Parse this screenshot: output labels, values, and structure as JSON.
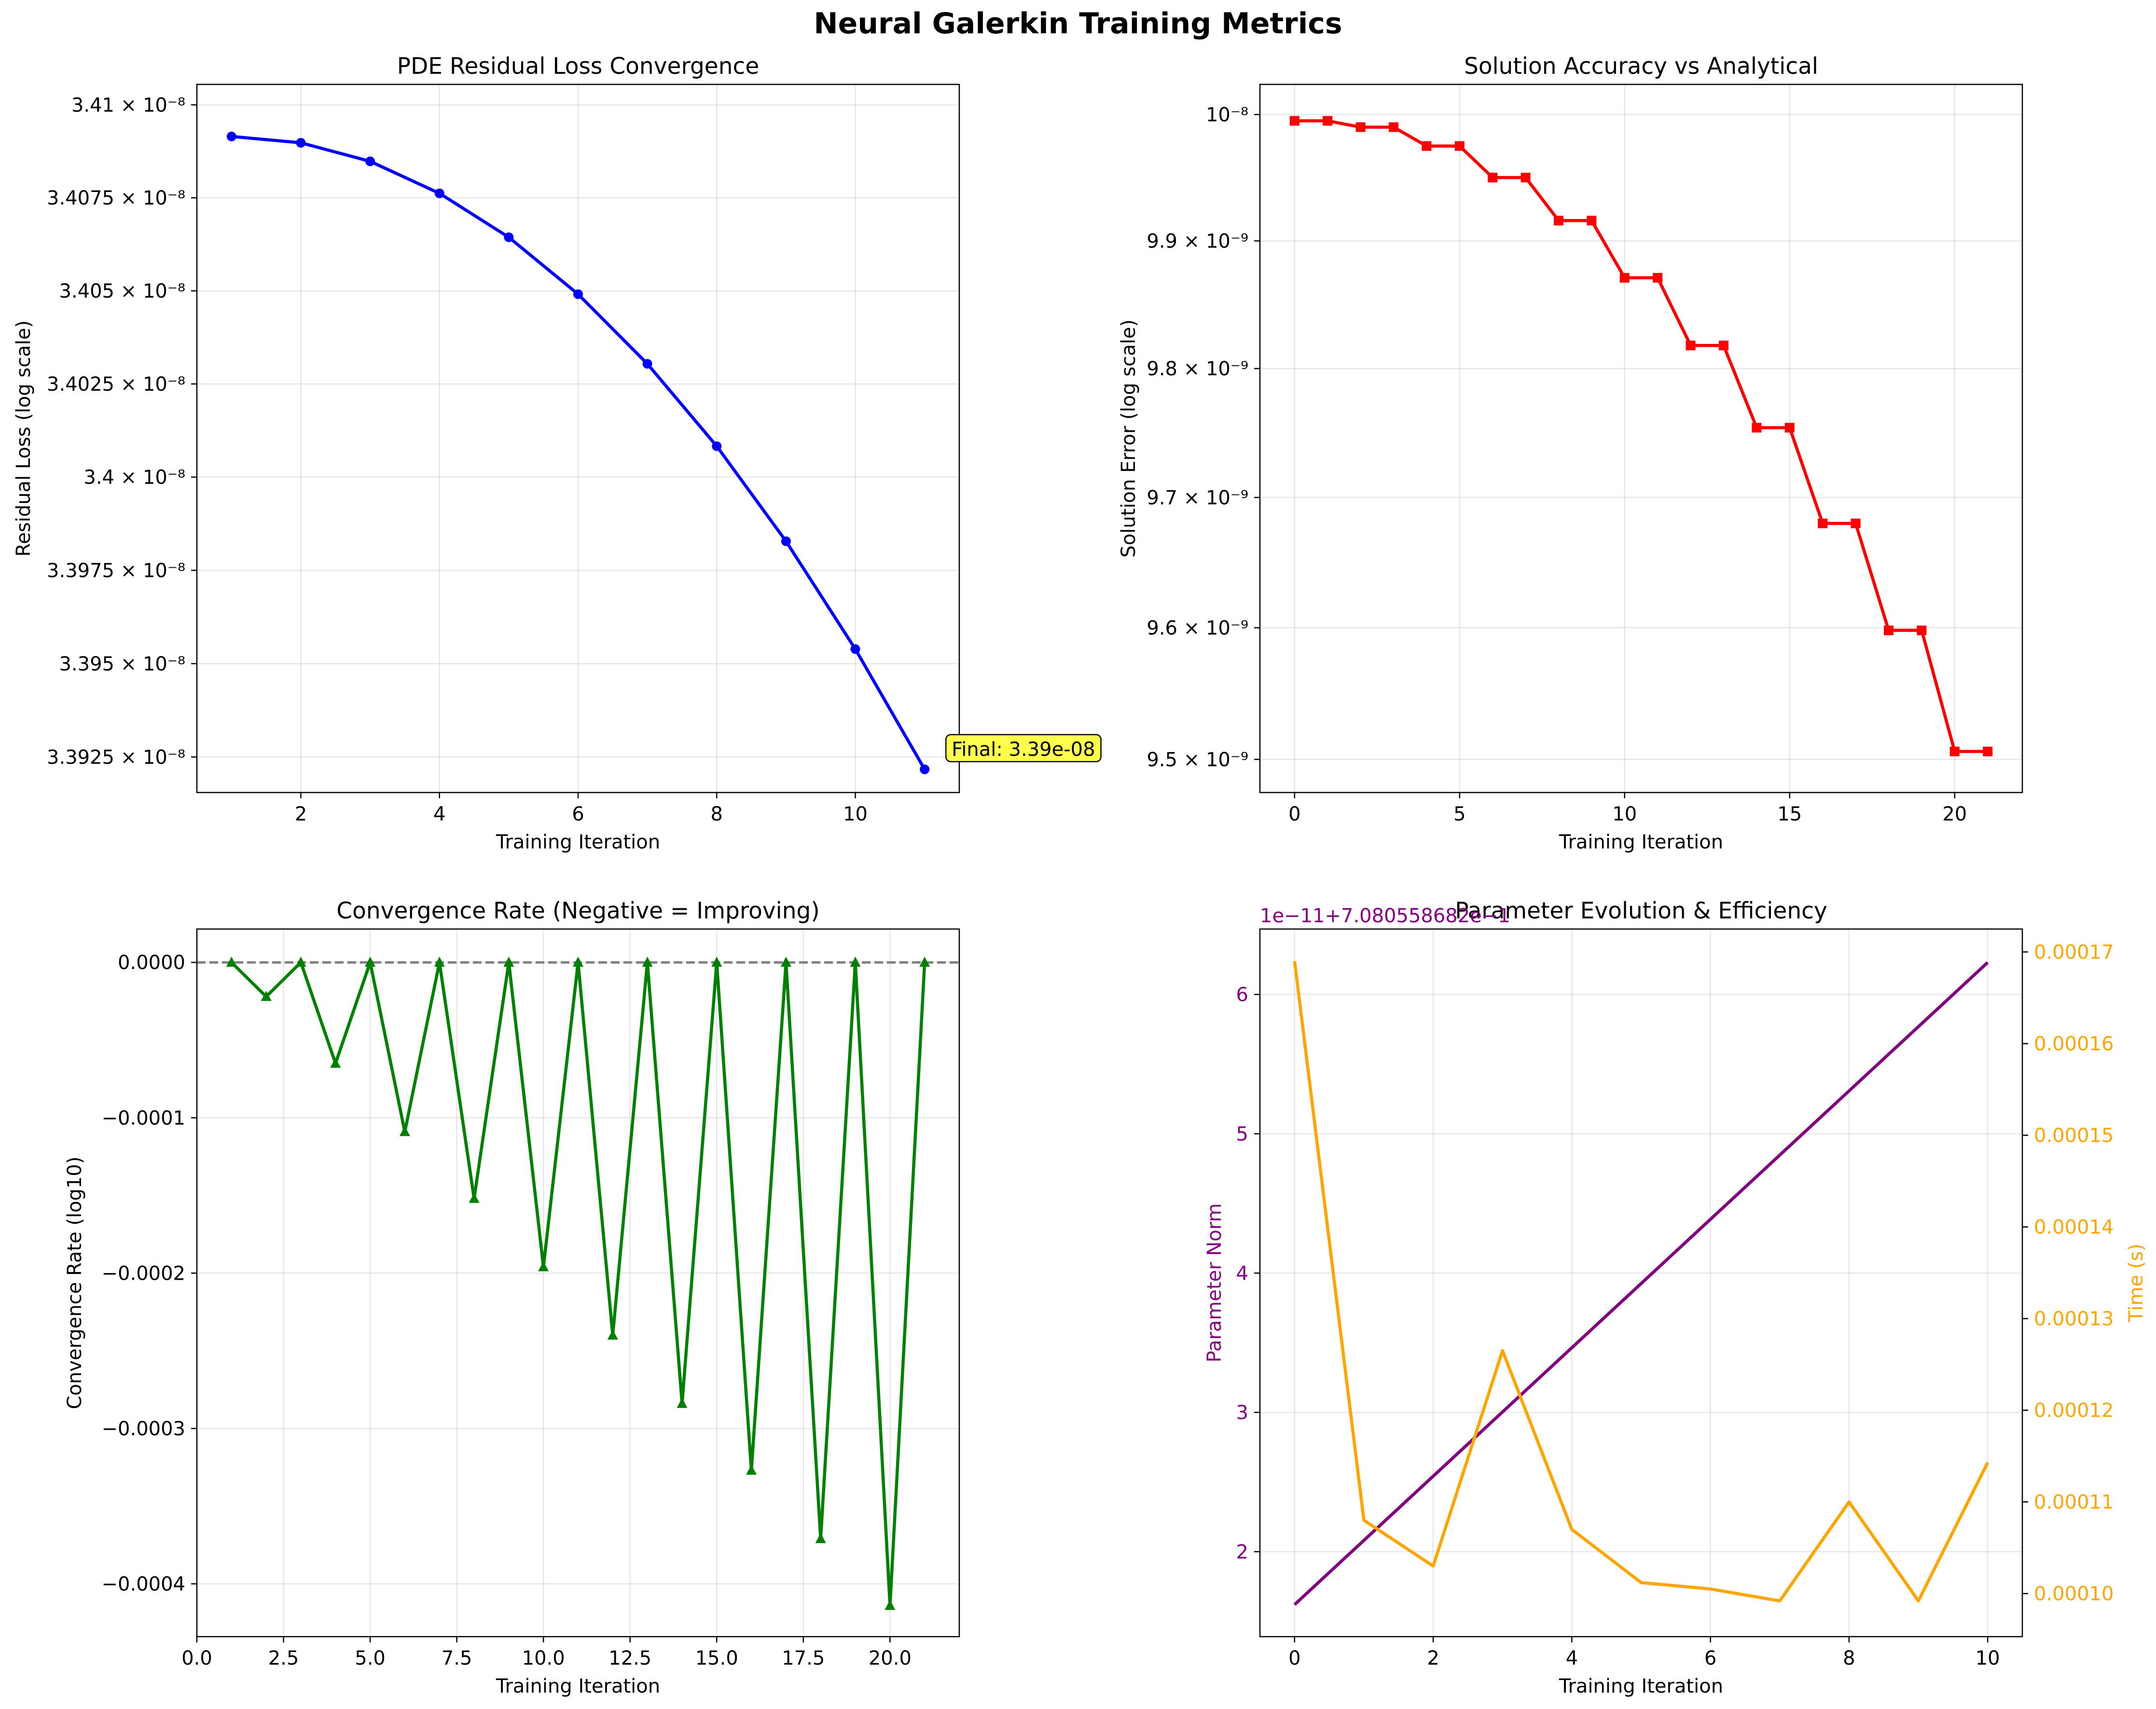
{
  "figure": {
    "suptitle": "Neural Galerkin Training Metrics"
  },
  "colors": {
    "blue": "#0000ff",
    "red": "#ff0000",
    "green": "#008000",
    "purple": "#800080",
    "orange": "#ffa500",
    "annotation_bg": "#ffff4d",
    "zero_line": "#808080"
  },
  "chart_data": [
    {
      "id": "residual",
      "type": "line",
      "title": "PDE Residual Loss Convergence",
      "xlabel": "Training Iteration",
      "ylabel": "Residual Loss (log scale)",
      "yscale": "log",
      "xlim": [
        0.5,
        11.5
      ],
      "ylim": [
        3.39155e-08,
        3.41055e-08
      ],
      "xticks": [
        2,
        4,
        6,
        8,
        10
      ],
      "yticks": [
        {
          "value": 3.3925e-08,
          "label": "3.3925 × 10⁻⁸"
        },
        {
          "value": 3.395e-08,
          "label": "3.395 × 10⁻⁸"
        },
        {
          "value": 3.3975e-08,
          "label": "3.3975 × 10⁻⁸"
        },
        {
          "value": 3.4e-08,
          "label": "3.4 × 10⁻⁸"
        },
        {
          "value": 3.4025e-08,
          "label": "3.4025 × 10⁻⁸"
        },
        {
          "value": 3.405e-08,
          "label": "3.405 × 10⁻⁸"
        },
        {
          "value": 3.4075e-08,
          "label": "3.4075 × 10⁻⁸"
        },
        {
          "value": 3.41e-08,
          "label": "3.41 × 10⁻⁸"
        }
      ],
      "grid": true,
      "series": [
        {
          "color": "#0000ff",
          "marker": "circle",
          "x": [
            1,
            2,
            3,
            4,
            5,
            6,
            7,
            8,
            9,
            10,
            11
          ],
          "y": [
            3.40915e-08,
            3.40898e-08,
            3.40848e-08,
            3.40762e-08,
            3.40644e-08,
            3.40491e-08,
            3.40304e-08,
            3.40083e-08,
            3.39828e-08,
            3.39539e-08,
            3.39217e-08
          ]
        }
      ],
      "annotation": {
        "text": "Final: 3.39e-08",
        "x": 11,
        "y": 3.39217e-08
      }
    },
    {
      "id": "accuracy",
      "type": "line",
      "title": "Solution Accuracy vs Analytical",
      "xlabel": "Training Iteration",
      "ylabel": "Solution Error (log scale)",
      "yscale": "log",
      "xlim": [
        -1.05,
        22.05
      ],
      "ylim": [
        9.475e-09,
        1.0024e-08
      ],
      "xticks": [
        0,
        5,
        10,
        15,
        20
      ],
      "yticks": [
        {
          "value": 9.5e-09,
          "label": "9.5 × 10⁻⁹"
        },
        {
          "value": 9.6e-09,
          "label": "9.6 × 10⁻⁹"
        },
        {
          "value": 9.7e-09,
          "label": "9.7 × 10⁻⁹"
        },
        {
          "value": 9.8e-09,
          "label": "9.8 × 10⁻⁹"
        },
        {
          "value": 9.9e-09,
          "label": "9.9 × 10⁻⁹"
        },
        {
          "value": 1e-08,
          "label": "10⁻⁸"
        }
      ],
      "grid": true,
      "series": [
        {
          "color": "#ff0000",
          "marker": "square",
          "x": [
            0,
            1,
            2,
            3,
            4,
            5,
            6,
            7,
            8,
            9,
            10,
            11,
            12,
            13,
            14,
            15,
            16,
            17,
            18,
            19,
            20,
            21
          ],
          "y": [
            9.995e-09,
            9.995e-09,
            9.99e-09,
            9.99e-09,
            9.975e-09,
            9.975e-09,
            9.95e-09,
            9.95e-09,
            9.916e-09,
            9.916e-09,
            9.871e-09,
            9.871e-09,
            9.818e-09,
            9.818e-09,
            9.754e-09,
            9.754e-09,
            9.68e-09,
            9.68e-09,
            9.598e-09,
            9.598e-09,
            9.506e-09,
            9.506e-09
          ]
        }
      ]
    },
    {
      "id": "rate",
      "type": "line",
      "title": "Convergence Rate (Negative = Improving)",
      "xlabel": "Training Iteration",
      "ylabel": "Convergence Rate (log10)",
      "xlim": [
        0,
        22
      ],
      "ylim": [
        -0.000434,
        2.15e-05
      ],
      "xticks": [
        {
          "value": 0,
          "label": "0.0"
        },
        {
          "value": 2.5,
          "label": "2.5"
        },
        {
          "value": 5,
          "label": "5.0"
        },
        {
          "value": 7.5,
          "label": "7.5"
        },
        {
          "value": 10,
          "label": "10.0"
        },
        {
          "value": 12.5,
          "label": "12.5"
        },
        {
          "value": 15,
          "label": "15.0"
        },
        {
          "value": 17.5,
          "label": "17.5"
        },
        {
          "value": 20,
          "label": "20.0"
        }
      ],
      "yticks": [
        {
          "value": 0,
          "label": "0.0000"
        },
        {
          "value": -0.0001,
          "label": "−0.0001"
        },
        {
          "value": -0.0002,
          "label": "−0.0002"
        },
        {
          "value": -0.0003,
          "label": "−0.0003"
        },
        {
          "value": -0.0004,
          "label": "−0.0004"
        }
      ],
      "grid": true,
      "hline": {
        "y": 0,
        "style": "dashed"
      },
      "series": [
        {
          "color": "#008000",
          "marker": "triangle",
          "x": [
            1,
            2,
            3,
            4,
            5,
            6,
            7,
            8,
            9,
            10,
            11,
            12,
            13,
            14,
            15,
            16,
            17,
            18,
            19,
            20,
            21
          ],
          "y": [
            0,
            -2.2e-05,
            0,
            -6.5e-05,
            0,
            -0.000109,
            0,
            -0.000152,
            0,
            -0.000196,
            0,
            -0.00024,
            0,
            -0.000284,
            0,
            -0.000327,
            0,
            -0.000371,
            0,
            -0.000414,
            0
          ]
        }
      ]
    },
    {
      "id": "params",
      "type": "line",
      "title": "Parameter Evolution & Efficiency",
      "xlabel": "Training Iteration",
      "ylabel": "Parameter Norm",
      "ylabel_right": "Time (s)",
      "offset_text": "1e−11+7.080558682e−1",
      "xlim": [
        -0.5,
        10.5
      ],
      "ylim": [
        1.39,
        6.47
      ],
      "ylim_right": [
        9.53e-05,
        0.0001725
      ],
      "xticks": [
        0,
        2,
        4,
        6,
        8,
        10
      ],
      "yticks": [
        2,
        3,
        4,
        5,
        6
      ],
      "yticks_right": [
        {
          "value": 0.0001,
          "label": "0.00010"
        },
        {
          "value": 0.00011,
          "label": "0.00011"
        },
        {
          "value": 0.00012,
          "label": "0.00012"
        },
        {
          "value": 0.00013,
          "label": "0.00013"
        },
        {
          "value": 0.00014,
          "label": "0.00014"
        },
        {
          "value": 0.00015,
          "label": "0.00015"
        },
        {
          "value": 0.00016,
          "label": "0.00016"
        },
        {
          "value": 0.00017,
          "label": "0.00017"
        }
      ],
      "grid": true,
      "series": [
        {
          "axis": "left",
          "color": "#800080",
          "x": [
            0,
            10
          ],
          "y": [
            1.62,
            6.23
          ]
        },
        {
          "axis": "right",
          "color": "#ffa500",
          "x": [
            0,
            1,
            2,
            3,
            4,
            5,
            6,
            7,
            8,
            9,
            10
          ],
          "y": [
            0.000169,
            0.000108,
            0.000103,
            0.0001265,
            0.000107,
            0.0001012,
            0.0001005,
            9.92e-05,
            0.00011,
            9.92e-05,
            0.0001143
          ]
        }
      ]
    }
  ]
}
